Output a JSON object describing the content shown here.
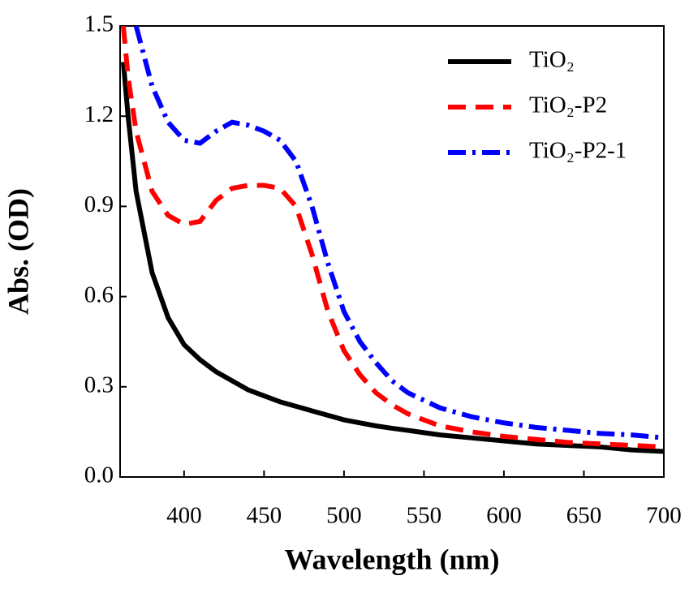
{
  "chart_data": {
    "type": "line",
    "x_label": "Wavelength (nm)",
    "y_label": "Abs. (OD)",
    "x": [
      362,
      365,
      370,
      380,
      390,
      400,
      410,
      420,
      430,
      440,
      450,
      460,
      470,
      480,
      490,
      500,
      510,
      520,
      530,
      540,
      560,
      580,
      600,
      620,
      640,
      660,
      680,
      700
    ],
    "series": [
      {
        "name": "TiO₂",
        "color": "#000000",
        "dash": "solid",
        "values": [
          1.38,
          1.2,
          0.95,
          0.68,
          0.53,
          0.44,
          0.39,
          0.35,
          0.32,
          0.29,
          0.27,
          0.25,
          0.235,
          0.22,
          0.205,
          0.19,
          0.18,
          0.17,
          0.162,
          0.155,
          0.14,
          0.13,
          0.12,
          0.11,
          0.105,
          0.1,
          0.09,
          0.085
        ]
      },
      {
        "name": "TiO₂-P2",
        "color": "#ff0000",
        "dash": "dash",
        "values": [
          1.5,
          1.33,
          1.15,
          0.95,
          0.87,
          0.84,
          0.85,
          0.92,
          0.96,
          0.97,
          0.97,
          0.96,
          0.9,
          0.74,
          0.55,
          0.42,
          0.34,
          0.28,
          0.24,
          0.21,
          0.17,
          0.15,
          0.135,
          0.125,
          0.115,
          0.11,
          0.105,
          0.1
        ]
      },
      {
        "name": "TiO₂-P2-1",
        "color": "#0000ff",
        "dash": "dashdot",
        "values": [
          null,
          null,
          1.5,
          1.3,
          1.18,
          1.12,
          1.11,
          1.15,
          1.18,
          1.17,
          1.15,
          1.12,
          1.05,
          0.9,
          0.71,
          0.55,
          0.45,
          0.38,
          0.32,
          0.28,
          0.23,
          0.2,
          0.18,
          0.165,
          0.155,
          0.145,
          0.14,
          0.13
        ]
      }
    ],
    "xlim": [
      360,
      700
    ],
    "xticks": [
      400,
      450,
      500,
      550,
      600,
      650,
      700
    ],
    "ylim": [
      0,
      1.5
    ],
    "yticks": [
      {
        "value": 0,
        "label": "0.0"
      },
      0.3,
      0.6,
      0.9,
      1.2,
      1.5
    ],
    "legend": "upper right",
    "grid": false
  }
}
